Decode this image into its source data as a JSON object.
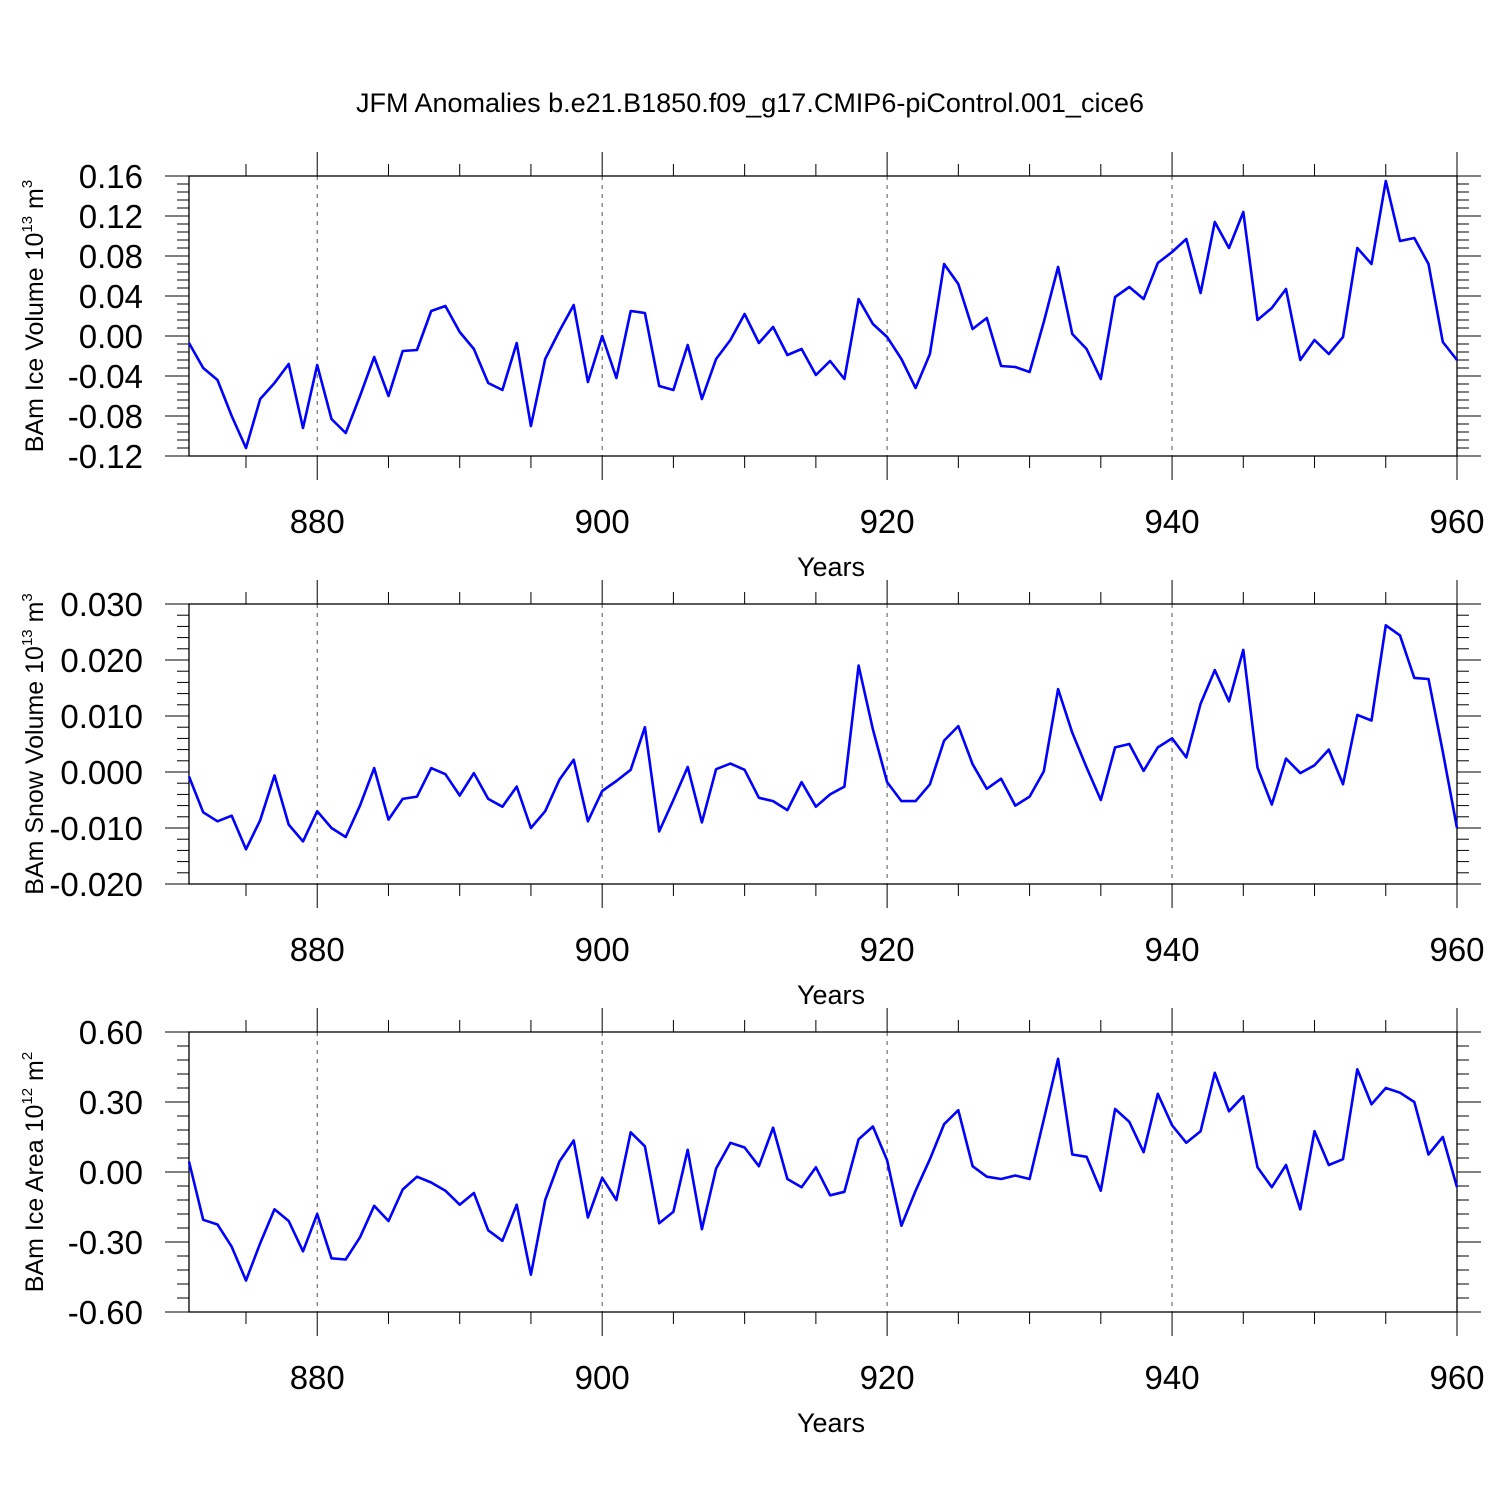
{
  "title": "JFM Anomalies b.e21.B1850.f09_g17.CMIP6-piControl.001_cice6",
  "colors": {
    "line": "#0000ff",
    "axis": "#000000",
    "grid": "#555555"
  },
  "chart_data": [
    {
      "type": "line",
      "name": "ice-volume",
      "ylabel": {
        "main": "BAm Ice Volume 10",
        "exp": "13",
        "unit": " m",
        "unit_exp": "3"
      },
      "xlabel": "Years",
      "xlim": [
        871,
        960
      ],
      "ylim": [
        -0.12,
        0.16
      ],
      "xticks": [
        880,
        900,
        920,
        940,
        960
      ],
      "xtick_labels": [
        "880",
        "900",
        "920",
        "940",
        "960"
      ],
      "yticks": [
        0.16,
        0.12,
        0.08,
        0.04,
        0.0,
        -0.04,
        -0.08,
        -0.12
      ],
      "ytick_labels": [
        "0.16",
        "0.12",
        "0.08",
        "0.04",
        "0.00",
        "-0.04",
        "-0.08",
        "-0.12"
      ],
      "grid": "x-dashed",
      "x_start": 871,
      "values": [
        -0.007,
        -0.032,
        -0.044,
        -0.08,
        -0.112,
        -0.063,
        -0.047,
        -0.028,
        -0.092,
        -0.029,
        -0.083,
        -0.097,
        -0.06,
        -0.021,
        -0.06,
        -0.015,
        -0.014,
        0.025,
        0.03,
        0.004,
        -0.013,
        -0.047,
        -0.054,
        -0.007,
        -0.09,
        -0.023,
        0.005,
        0.031,
        -0.046,
        0.0,
        -0.042,
        0.025,
        0.023,
        -0.05,
        -0.054,
        -0.009,
        -0.063,
        -0.023,
        -0.004,
        0.022,
        -0.007,
        0.009,
        -0.019,
        -0.013,
        -0.039,
        -0.025,
        -0.043,
        0.037,
        0.012,
        -0.001,
        -0.023,
        -0.052,
        -0.018,
        0.072,
        0.052,
        0.007,
        0.018,
        -0.03,
        -0.031,
        -0.036,
        0.014,
        0.069,
        0.002,
        -0.013,
        -0.043,
        0.039,
        0.049,
        0.037,
        0.073,
        0.084,
        0.097,
        0.043,
        0.114,
        0.088,
        0.124,
        0.016,
        0.028,
        0.047,
        -0.024,
        -0.004,
        -0.018,
        -0.001,
        0.088,
        0.072,
        0.155,
        0.095,
        0.098,
        0.072,
        -0.006,
        -0.024
      ]
    },
    {
      "type": "line",
      "name": "snow-volume",
      "ylabel": {
        "main": "BAm Snow Volume 10",
        "exp": "13",
        "unit": " m",
        "unit_exp": "3"
      },
      "xlabel": "Years",
      "xlim": [
        871,
        960
      ],
      "ylim": [
        -0.02,
        0.03
      ],
      "xticks": [
        880,
        900,
        920,
        940,
        960
      ],
      "xtick_labels": [
        "880",
        "900",
        "920",
        "940",
        "960"
      ],
      "yticks": [
        0.03,
        0.02,
        0.01,
        0.0,
        -0.01,
        -0.02
      ],
      "ytick_labels": [
        "0.030",
        "0.020",
        "0.010",
        "0.000",
        "-0.010",
        "-0.020"
      ],
      "grid": "x-dashed",
      "x_start": 871,
      "values": [
        -0.0008,
        -0.0072,
        -0.0088,
        -0.0078,
        -0.0138,
        -0.0086,
        -0.0006,
        -0.0094,
        -0.0124,
        -0.007,
        -0.01,
        -0.0116,
        -0.006,
        0.0007,
        -0.0085,
        -0.0048,
        -0.0044,
        0.0007,
        -0.0004,
        -0.0042,
        -0.0002,
        -0.0048,
        -0.0062,
        -0.0026,
        -0.01,
        -0.007,
        -0.0014,
        0.0022,
        -0.0088,
        -0.0034,
        -0.0016,
        0.0004,
        0.008,
        -0.0106,
        -0.005,
        0.0009,
        -0.009,
        0.0005,
        0.0015,
        0.0004,
        -0.0046,
        -0.0052,
        -0.0068,
        -0.0018,
        -0.0062,
        -0.004,
        -0.0026,
        0.019,
        0.0076,
        -0.0018,
        -0.0052,
        -0.0052,
        -0.0022,
        0.0056,
        0.0082,
        0.0014,
        -0.003,
        -0.0012,
        -0.006,
        -0.0044,
        0.0001,
        0.0148,
        0.007,
        0.0008,
        -0.005,
        0.0044,
        0.005,
        0.0002,
        0.0044,
        0.006,
        0.0026,
        0.0122,
        0.0182,
        0.0126,
        0.0218,
        0.0008,
        -0.0058,
        0.0024,
        -0.0002,
        0.0012,
        0.004,
        -0.0022,
        0.0102,
        0.0092,
        0.0262,
        0.0244,
        0.0168,
        0.0166,
        0.0036,
        -0.01
      ]
    },
    {
      "type": "line",
      "name": "ice-area",
      "ylabel": {
        "main": "BAm Ice Area 10",
        "exp": "12",
        "unit": " m",
        "unit_exp": "2"
      },
      "xlabel": "Years",
      "xlim": [
        871,
        960
      ],
      "ylim": [
        -0.6,
        0.6
      ],
      "xticks": [
        880,
        900,
        920,
        940,
        960
      ],
      "xtick_labels": [
        "880",
        "900",
        "920",
        "940",
        "960"
      ],
      "yticks": [
        0.6,
        0.3,
        0.0,
        -0.3,
        -0.6
      ],
      "ytick_labels": [
        "0.60",
        "0.30",
        "0.00",
        "-0.30",
        "-0.60"
      ],
      "grid": "x-dashed",
      "x_start": 871,
      "values": [
        0.045,
        -0.205,
        -0.225,
        -0.32,
        -0.465,
        -0.305,
        -0.16,
        -0.21,
        -0.34,
        -0.18,
        -0.37,
        -0.375,
        -0.28,
        -0.145,
        -0.21,
        -0.075,
        -0.02,
        -0.045,
        -0.08,
        -0.14,
        -0.09,
        -0.25,
        -0.295,
        -0.14,
        -0.44,
        -0.12,
        0.045,
        0.135,
        -0.195,
        -0.025,
        -0.12,
        0.17,
        0.11,
        -0.22,
        -0.17,
        0.095,
        -0.245,
        0.015,
        0.125,
        0.105,
        0.025,
        0.19,
        -0.03,
        -0.065,
        0.02,
        -0.1,
        -0.085,
        0.14,
        0.195,
        0.05,
        -0.23,
        -0.08,
        0.055,
        0.205,
        0.265,
        0.025,
        -0.02,
        -0.03,
        -0.015,
        -0.03,
        0.225,
        0.485,
        0.075,
        0.065,
        -0.08,
        0.27,
        0.215,
        0.085,
        0.335,
        0.2,
        0.125,
        0.175,
        0.425,
        0.26,
        0.325,
        0.02,
        -0.065,
        0.03,
        -0.16,
        0.175,
        0.03,
        0.055,
        0.44,
        0.29,
        0.36,
        0.34,
        0.3,
        0.075,
        0.15,
        -0.065
      ]
    }
  ]
}
